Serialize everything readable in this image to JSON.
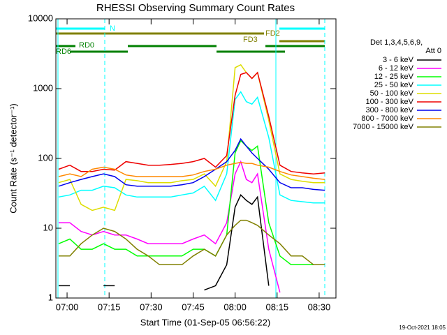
{
  "chart_data": {
    "type": "line",
    "title": "RHESSI Observing Summary Count Rates",
    "x_label": "Start Time (01-Sep-05 06:56:22)",
    "y_label": "Count Rate (s⁻¹ detector⁻¹)",
    "yscale": "log",
    "xlim": [
      "06:56",
      "08:36"
    ],
    "xticks": [
      "07:00",
      "07:15",
      "07:30",
      "07:45",
      "08:00",
      "08:15",
      "08:30"
    ],
    "ylim": [
      1,
      10000
    ],
    "yticks": [
      1,
      10,
      100,
      1000,
      10000
    ],
    "legend_title": [
      "Det 1,3,4,5,6,9,",
      "Att 0"
    ],
    "annotations": [
      "N",
      "FD2",
      "FD3",
      "RD0",
      "RD6"
    ],
    "footer": "19-Oct-2021 18:05",
    "x": [
      "06:57",
      "07:01",
      "07:05",
      "07:09",
      "07:13",
      "07:17",
      "07:21",
      "07:25",
      "07:29",
      "07:33",
      "07:37",
      "07:41",
      "07:45",
      "07:49",
      "07:53",
      "07:57",
      "08:00",
      "08:02",
      "08:04",
      "08:06",
      "08:08",
      "08:12",
      "08:16",
      "08:20",
      "08:24",
      "08:28",
      "08:32"
    ],
    "series": [
      {
        "name": "3 - 6 keV",
        "color": "#000000",
        "values": [
          1.5,
          1.5,
          null,
          null,
          1.5,
          1.5,
          null,
          null,
          null,
          null,
          null,
          null,
          null,
          1.3,
          1.5,
          3,
          20,
          30,
          25,
          22,
          28,
          1.5,
          null,
          null,
          null,
          null,
          null
        ]
      },
      {
        "name": "6 - 12 keV",
        "color": "#ff00ff",
        "values": [
          12,
          12,
          9,
          8,
          9,
          8,
          8,
          7,
          6,
          6,
          6,
          6,
          7,
          8,
          6,
          12,
          60,
          90,
          50,
          45,
          60,
          5,
          1.2,
          null,
          null,
          null,
          null
        ]
      },
      {
        "name": "12 - 25 keV",
        "color": "#00ff00",
        "values": [
          6,
          7,
          5,
          5,
          6,
          5,
          5,
          4,
          4,
          4,
          4,
          4,
          5,
          5,
          4,
          8,
          120,
          180,
          150,
          130,
          150,
          12,
          4,
          3,
          3,
          3,
          3
        ]
      },
      {
        "name": "25 - 50 keV",
        "color": "#00ffff",
        "values": [
          28,
          30,
          35,
          35,
          40,
          38,
          30,
          28,
          28,
          28,
          28,
          30,
          32,
          40,
          25,
          60,
          700,
          900,
          650,
          600,
          750,
          200,
          30,
          25,
          24,
          23,
          23
        ]
      },
      {
        "name": "50 - 100 keV",
        "color": "#dddd00",
        "values": [
          45,
          50,
          22,
          18,
          20,
          18,
          50,
          48,
          45,
          45,
          45,
          48,
          50,
          60,
          40,
          90,
          2000,
          2200,
          1700,
          1400,
          1700,
          350,
          60,
          50,
          47,
          45,
          45
        ]
      },
      {
        "name": "100 - 300 keV",
        "color": "#ee0000",
        "values": [
          70,
          80,
          65,
          65,
          70,
          68,
          90,
          85,
          80,
          80,
          82,
          85,
          90,
          100,
          75,
          110,
          800,
          1600,
          1700,
          1400,
          1700,
          400,
          80,
          65,
          62,
          60,
          62
        ]
      },
      {
        "name": "300 - 800 keV",
        "color": "#0000ee",
        "values": [
          40,
          45,
          50,
          55,
          60,
          55,
          42,
          40,
          40,
          40,
          40,
          42,
          45,
          55,
          70,
          90,
          130,
          190,
          150,
          120,
          100,
          70,
          45,
          38,
          38,
          36,
          35
        ]
      },
      {
        "name": "800 - 7000 keV",
        "color": "#ff8800",
        "values": [
          55,
          60,
          55,
          70,
          75,
          70,
          58,
          55,
          55,
          55,
          55,
          55,
          58,
          65,
          70,
          80,
          85,
          88,
          85,
          85,
          80,
          75,
          65,
          58,
          55,
          52,
          50
        ]
      },
      {
        "name": "7000 - 15000 keV",
        "color": "#808000",
        "values": [
          4,
          4,
          6,
          8,
          10,
          9,
          7,
          5,
          4,
          3,
          3,
          3,
          4,
          5,
          4,
          8,
          11,
          13,
          13,
          12,
          11,
          8,
          6,
          4,
          4,
          3,
          3
        ]
      }
    ]
  }
}
